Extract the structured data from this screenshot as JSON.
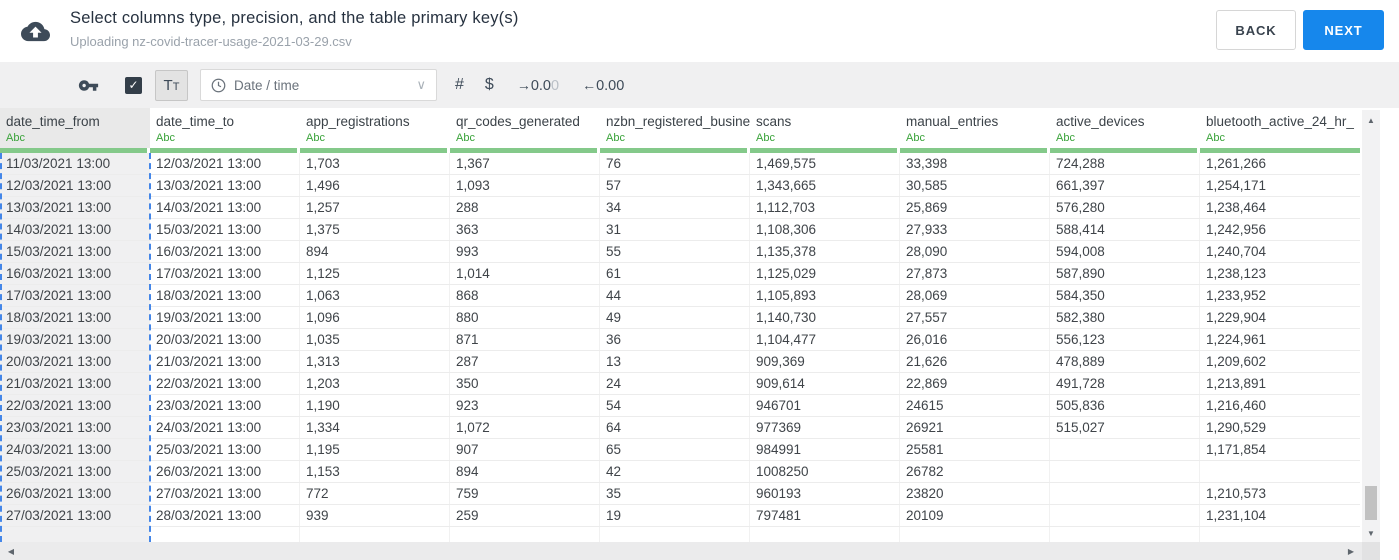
{
  "header": {
    "title": "Select columns type, precision, and the table primary key(s)",
    "subtitle": "Uploading nz-covid-tracer-usage-2021-03-29.csv",
    "back_label": "BACK",
    "next_label": "NEXT"
  },
  "toolbar": {
    "primary_key_checkbox_checked": true,
    "text_type_button_label": "Tt",
    "type_dropdown_value": "Date / time",
    "number_type_label": "#",
    "currency_type_label": "$",
    "decrease_precision_dark": "0.0",
    "decrease_precision_faded": "0",
    "increase_precision_label": "0.00"
  },
  "icons": {
    "upload": "cloud-upload",
    "primary_key": "key",
    "checkbox_check": "✓",
    "clock": "clock",
    "chevron_down": "∨",
    "arrow_right": "→",
    "arrow_left": "←",
    "scroll_up": "▲",
    "scroll_down": "▼",
    "scroll_left": "◀",
    "scroll_right": "▶"
  },
  "colors": {
    "accent_blue": "#1687ec",
    "column_ready_green": "#84c98a",
    "type_label_green": "#39a339",
    "selection_dashed_blue": "#4486e8"
  },
  "table": {
    "selected_column": "date_time_from",
    "columns": [
      {
        "name": "date_time_from",
        "type_label": "Abc",
        "selected": true
      },
      {
        "name": "date_time_to",
        "type_label": "Abc",
        "selected": false
      },
      {
        "name": "app_registrations",
        "type_label": "Abc",
        "selected": false
      },
      {
        "name": "qr_codes_generated",
        "type_label": "Abc",
        "selected": false
      },
      {
        "name": "nzbn_registered_busine",
        "type_label": "Abc",
        "selected": false
      },
      {
        "name": "scans",
        "type_label": "Abc",
        "selected": false
      },
      {
        "name": "manual_entries",
        "type_label": "Abc",
        "selected": false
      },
      {
        "name": "active_devices",
        "type_label": "Abc",
        "selected": false
      },
      {
        "name": "bluetooth_active_24_hr_",
        "type_label": "Abc",
        "selected": false
      }
    ],
    "rows": [
      [
        "11/03/2021 13:00",
        "12/03/2021 13:00",
        "1,703",
        "1,367",
        "76",
        "1,469,575",
        "33,398",
        "724,288",
        "1,261,266"
      ],
      [
        "12/03/2021 13:00",
        "13/03/2021 13:00",
        "1,496",
        "1,093",
        "57",
        "1,343,665",
        "30,585",
        "661,397",
        "1,254,171"
      ],
      [
        "13/03/2021 13:00",
        "14/03/2021 13:00",
        "1,257",
        "288",
        "34",
        "1,112,703",
        "25,869",
        "576,280",
        "1,238,464"
      ],
      [
        "14/03/2021 13:00",
        "15/03/2021 13:00",
        "1,375",
        "363",
        "31",
        "1,108,306",
        "27,933",
        "588,414",
        "1,242,956"
      ],
      [
        "15/03/2021 13:00",
        "16/03/2021 13:00",
        "894",
        "993",
        "55",
        "1,135,378",
        "28,090",
        "594,008",
        "1,240,704"
      ],
      [
        "16/03/2021 13:00",
        "17/03/2021 13:00",
        "1,125",
        "1,014",
        "61",
        "1,125,029",
        "27,873",
        "587,890",
        "1,238,123"
      ],
      [
        "17/03/2021 13:00",
        "18/03/2021 13:00",
        "1,063",
        "868",
        "44",
        "1,105,893",
        "28,069",
        "584,350",
        "1,233,952"
      ],
      [
        "18/03/2021 13:00",
        "19/03/2021 13:00",
        "1,096",
        "880",
        "49",
        "1,140,730",
        "27,557",
        "582,380",
        "1,229,904"
      ],
      [
        "19/03/2021 13:00",
        "20/03/2021 13:00",
        "1,035",
        "871",
        "36",
        "1,104,477",
        "26,016",
        "556,123",
        "1,224,961"
      ],
      [
        "20/03/2021 13:00",
        "21/03/2021 13:00",
        "1,313",
        "287",
        "13",
        "909,369",
        "21,626",
        "478,889",
        "1,209,602"
      ],
      [
        "21/03/2021 13:00",
        "22/03/2021 13:00",
        "1,203",
        "350",
        "24",
        "909,614",
        "22,869",
        "491,728",
        "1,213,891"
      ],
      [
        "22/03/2021 13:00",
        "23/03/2021 13:00",
        "1,190",
        "923",
        "54",
        "946701",
        "24615",
        "505,836",
        "1,216,460"
      ],
      [
        "23/03/2021 13:00",
        "24/03/2021 13:00",
        "1,334",
        "1,072",
        "64",
        "977369",
        "26921",
        "515,027",
        "1,290,529"
      ],
      [
        "24/03/2021 13:00",
        "25/03/2021 13:00",
        "1,195",
        "907",
        "65",
        "984991",
        "25581",
        "",
        "1,171,854"
      ],
      [
        "25/03/2021 13:00",
        "26/03/2021 13:00",
        "1,153",
        "894",
        "42",
        "1008250",
        "26782",
        "",
        ""
      ],
      [
        "26/03/2021 13:00",
        "27/03/2021 13:00",
        "772",
        "759",
        "35",
        "960193",
        "23820",
        "",
        "1,210,573"
      ],
      [
        "27/03/2021 13:00",
        "28/03/2021 13:00",
        "939",
        "259",
        "19",
        "797481",
        "20109",
        "",
        "1,231,104"
      ]
    ]
  }
}
